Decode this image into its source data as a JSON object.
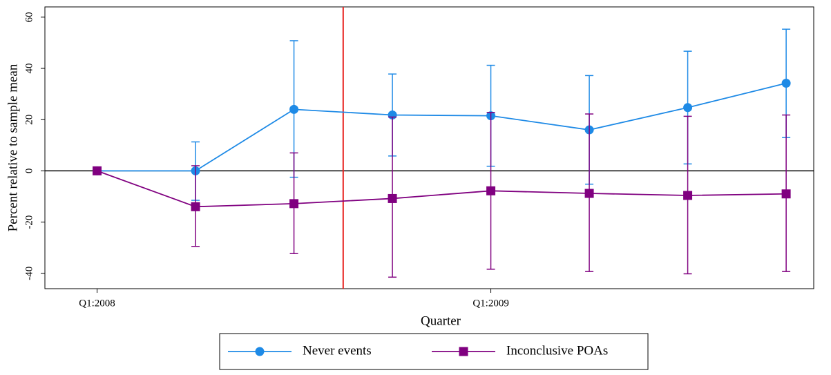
{
  "chart_data": {
    "type": "line",
    "x_label": "Quarter",
    "y_label": "Percent relative to sample mean",
    "x": [
      0,
      1,
      2,
      3,
      4,
      5,
      6,
      7
    ],
    "xlim": [
      -0.53,
      7.28
    ],
    "xticks": [
      {
        "value": 0,
        "label": "Q1:2008"
      },
      {
        "value": 4,
        "label": "Q1:2009"
      }
    ],
    "ylim": [
      -46,
      64
    ],
    "yticks": [
      -40,
      -20,
      0,
      20,
      40,
      60
    ],
    "hline": 0,
    "vline": 2.5,
    "vline_color": "#e8231f",
    "series": [
      {
        "name": "Never events",
        "color": "#1e8ae6",
        "marker": "circle",
        "values": [
          0,
          0,
          24,
          21.8,
          21.5,
          16,
          24.7,
          34.2
        ],
        "lower": [
          null,
          -11.5,
          -2.5,
          5.8,
          1.8,
          -5.2,
          2.7,
          13
        ],
        "upper": [
          null,
          11.3,
          50.8,
          37.8,
          41.2,
          37.2,
          46.7,
          55.3
        ]
      },
      {
        "name": "Inconclusive POAs",
        "color": "#800080",
        "marker": "square",
        "values": [
          0,
          -14,
          -12.8,
          -10.8,
          -7.8,
          -8.8,
          -9.6,
          -9
        ],
        "lower": [
          null,
          -29.5,
          -32.3,
          -41.5,
          -38.4,
          -39.3,
          -40.2,
          -39.3
        ],
        "upper": [
          null,
          2,
          7,
          21,
          22.8,
          22.2,
          21.3,
          21.8
        ]
      }
    ]
  }
}
